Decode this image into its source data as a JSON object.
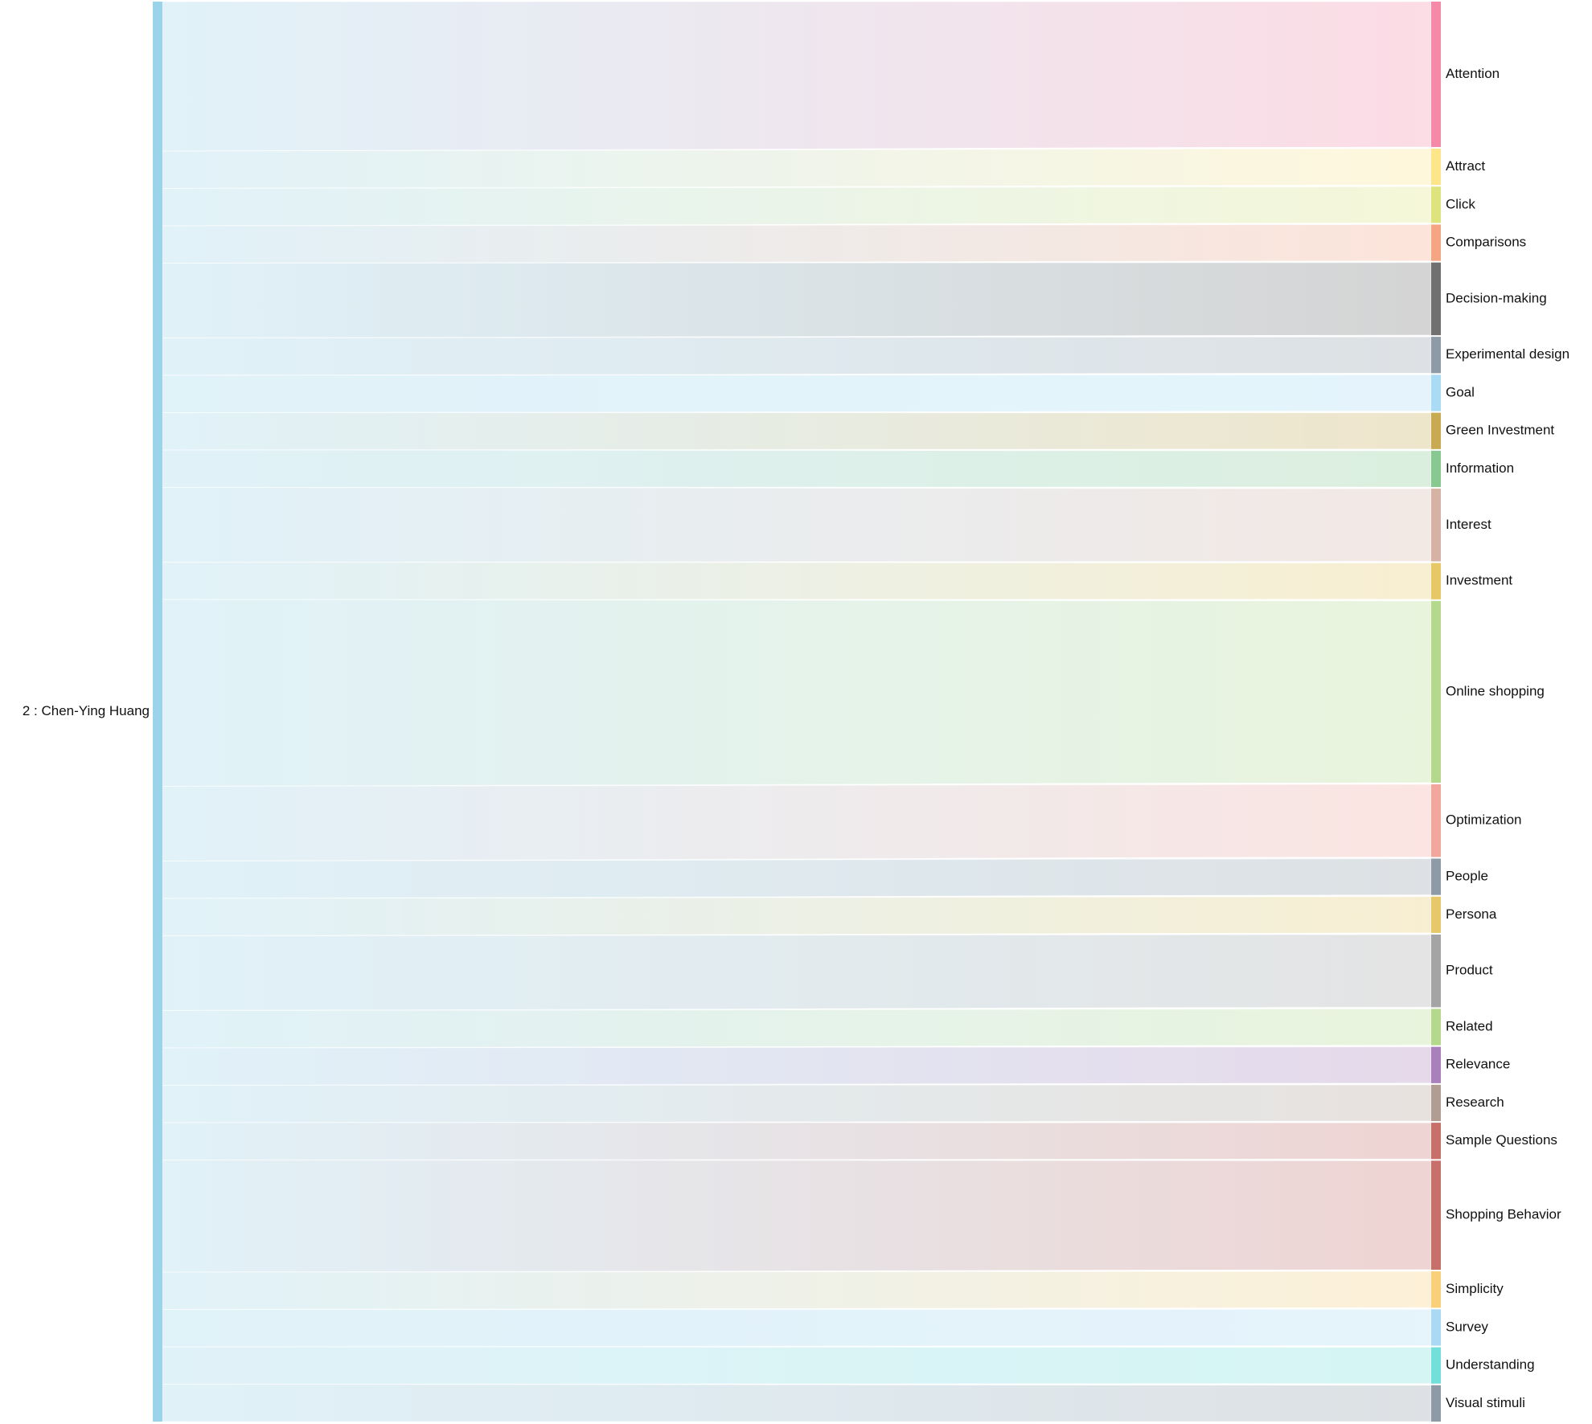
{
  "chart_data": {
    "type": "sankey",
    "source": {
      "label": "2 : Chen-Ying Huang",
      "color": "#9ad3ea"
    },
    "targets": [
      {
        "label": "Attention",
        "value": 4,
        "color": "#f48aa8"
      },
      {
        "label": "Attract",
        "value": 1,
        "color": "#fde58a"
      },
      {
        "label": "Click",
        "value": 1,
        "color": "#dde47d"
      },
      {
        "label": "Comparisons",
        "value": 1,
        "color": "#f6a583"
      },
      {
        "label": "Decision-making",
        "value": 2,
        "color": "#707070"
      },
      {
        "label": "Experimental design",
        "value": 1,
        "color": "#8e9aa5"
      },
      {
        "label": "Goal",
        "value": 1,
        "color": "#a9dcf4"
      },
      {
        "label": "Green Investment",
        "value": 1,
        "color": "#c8aa52"
      },
      {
        "label": "Information",
        "value": 1,
        "color": "#88c992"
      },
      {
        "label": "Interest",
        "value": 2,
        "color": "#d6b2a5"
      },
      {
        "label": "Investment",
        "value": 1,
        "color": "#e8c866"
      },
      {
        "label": "Online shopping",
        "value": 5,
        "color": "#b5d98c"
      },
      {
        "label": "Optimization",
        "value": 2,
        "color": "#f2a79c"
      },
      {
        "label": "People",
        "value": 1,
        "color": "#8e9aa5"
      },
      {
        "label": "Persona",
        "value": 1,
        "color": "#e6c86a"
      },
      {
        "label": "Product",
        "value": 2,
        "color": "#a4a4a4"
      },
      {
        "label": "Related",
        "value": 1,
        "color": "#b5d98c"
      },
      {
        "label": "Relevance",
        "value": 1,
        "color": "#a980b9"
      },
      {
        "label": "Research",
        "value": 1,
        "color": "#b19d92"
      },
      {
        "label": "Sample Questions",
        "value": 1,
        "color": "#c7706a"
      },
      {
        "label": "Shopping Behavior",
        "value": 3,
        "color": "#c7706a"
      },
      {
        "label": "Simplicity",
        "value": 1,
        "color": "#f9cf7a"
      },
      {
        "label": "Survey",
        "value": 1,
        "color": "#aad9f3"
      },
      {
        "label": "Understanding",
        "value": 1,
        "color": "#72dfda"
      },
      {
        "label": "Visual stimuli",
        "value": 1,
        "color": "#8e9aa5"
      }
    ]
  }
}
